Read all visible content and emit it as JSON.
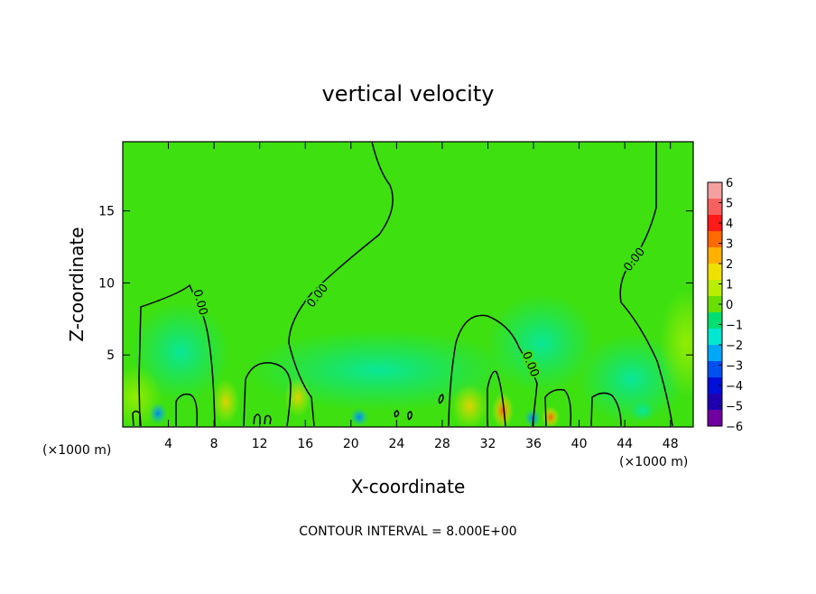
{
  "chart_data": {
    "type": "heatmap",
    "title": "vertical velocity",
    "xlabel": "X-coordinate",
    "ylabel": "Z-coordinate",
    "x_unit_left": "(×1000 m)",
    "x_unit_right": "(×1000 m)",
    "xlim": [
      0,
      50
    ],
    "ylim": [
      0,
      19.8
    ],
    "x_ticks": [
      4,
      8,
      12,
      16,
      20,
      24,
      28,
      32,
      36,
      40,
      44,
      48
    ],
    "y_ticks": [
      5,
      10,
      15
    ],
    "colorbar": {
      "ticks": [
        6,
        5,
        4,
        3,
        2,
        1,
        0,
        -1,
        -2,
        -3,
        -4,
        -5,
        -6
      ],
      "colors": [
        "#f4a0a0",
        "#f86060",
        "#ff1a1a",
        "#ff6a00",
        "#ffb000",
        "#f0e000",
        "#b8ee00",
        "#6ae000",
        "#00e070",
        "#00e8d0",
        "#00a8f8",
        "#0050f0",
        "#0010d8",
        "#2000b0",
        "#7000a0"
      ]
    },
    "contour_label": "0.00",
    "contour_interval_text": "CONTOUR INTERVAL = 8.000E+00",
    "background_color": "#3ee010",
    "grid": false
  }
}
